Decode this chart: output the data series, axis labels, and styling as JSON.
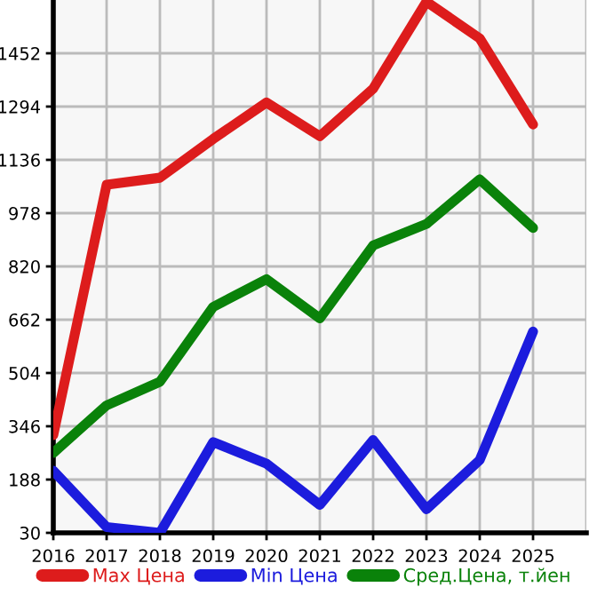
{
  "chart_data": {
    "type": "line",
    "x": [
      2016,
      2017,
      2018,
      2019,
      2020,
      2021,
      2022,
      2023,
      2024,
      2025
    ],
    "series": [
      {
        "name": "Max Цена",
        "color": "#dd1c1c",
        "values": [
          320,
          1062,
          1083,
          1198,
          1306,
          1206,
          1347,
          1605,
          1496,
          1241
        ]
      },
      {
        "name": "Min Цена",
        "color": "#1c1cdd",
        "values": [
          214,
          47,
          30,
          299,
          235,
          113,
          305,
          100,
          246,
          627
        ]
      },
      {
        "name": "Сред.Цена, т.йен",
        "color": "#0a820a",
        "values": [
          267,
          408,
          478,
          700,
          782,
          666,
          882,
          946,
          1078,
          934
        ]
      }
    ],
    "xlim": [
      2016,
      2026
    ],
    "xticks": [
      2016,
      2017,
      2018,
      2019,
      2020,
      2021,
      2022,
      2023,
      2024,
      2025
    ],
    "ylim": [
      30,
      1610
    ],
    "yticks": [
      30,
      188,
      346,
      504,
      662,
      820,
      978,
      1136,
      1294,
      1452
    ],
    "grid": true,
    "legend": "bottom",
    "marker": "none",
    "line_style": "solid"
  }
}
